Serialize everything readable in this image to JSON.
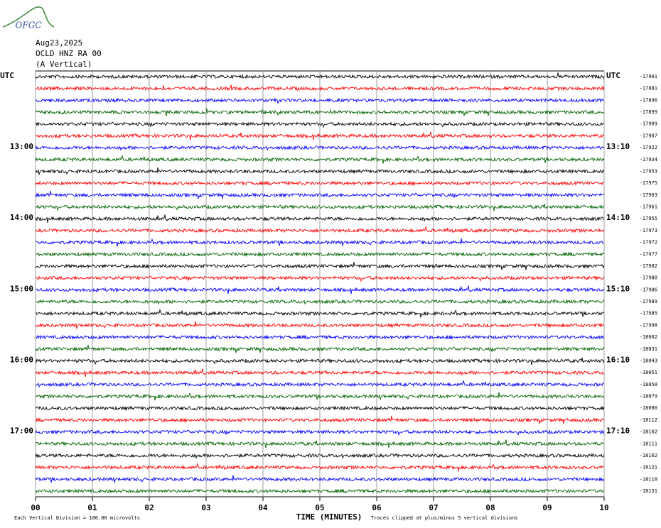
{
  "chart_data": {
    "type": "helicorder",
    "logo": "OFGC",
    "date": "Aug23,2025",
    "station": "OCLD HNZ RA 00",
    "component": "(A Vertical)",
    "xlabel": "TIME (MINUTES)",
    "xlim": [
      0,
      10
    ],
    "xticks": [
      {
        "value": 0,
        "label": "00"
      },
      {
        "value": 1,
        "label": "01"
      },
      {
        "value": 2,
        "label": "02"
      },
      {
        "value": 3,
        "label": "03"
      },
      {
        "value": 4,
        "label": "04"
      },
      {
        "value": 5,
        "label": "05"
      },
      {
        "value": 6,
        "label": "06"
      },
      {
        "value": 7,
        "label": "07"
      },
      {
        "value": 8,
        "label": "08"
      },
      {
        "value": 9,
        "label": "09"
      },
      {
        "value": 10,
        "label": "10"
      }
    ],
    "grid": true,
    "trace_colors": [
      "#000000",
      "#ff0000",
      "#0000ff",
      "#006400"
    ],
    "note_scale": "Each Vertical Division =  100.00 microvolts",
    "note_clip": "Traces clipped at plus/minus 5 vertical divisions",
    "rows": [
      {
        "left": "UTC",
        "right": "UTC",
        "offset": "-17901"
      },
      {
        "offset": "-17881"
      },
      {
        "offset": "-17896"
      },
      {
        "offset": "-17899"
      },
      {
        "offset": "-17909"
      },
      {
        "offset": "-17907"
      },
      {
        "left": "13:00",
        "right": "13:10",
        "offset": "-17922"
      },
      {
        "offset": "-17934"
      },
      {
        "offset": "-17953"
      },
      {
        "offset": "-17975"
      },
      {
        "offset": "-17963"
      },
      {
        "offset": "-17961"
      },
      {
        "left": "14:00",
        "right": "14:10",
        "offset": "-17955"
      },
      {
        "offset": "-17973"
      },
      {
        "offset": "-17972"
      },
      {
        "offset": "-17977"
      },
      {
        "offset": "-17982"
      },
      {
        "offset": "-17980"
      },
      {
        "left": "15:00",
        "right": "15:10",
        "offset": "-17986"
      },
      {
        "offset": "-17989"
      },
      {
        "offset": "-17985"
      },
      {
        "offset": "-17998"
      },
      {
        "offset": "-18002"
      },
      {
        "offset": "-18031"
      },
      {
        "left": "16:00",
        "right": "16:10",
        "offset": "-18043"
      },
      {
        "offset": "-18051"
      },
      {
        "offset": "-18058"
      },
      {
        "offset": "-18079"
      },
      {
        "offset": "-18080"
      },
      {
        "offset": "-18112"
      },
      {
        "left": "17:00",
        "right": "17:10",
        "offset": "-18102"
      },
      {
        "offset": "-18111"
      },
      {
        "offset": "-18102"
      },
      {
        "offset": "-18121"
      },
      {
        "offset": "-18118"
      },
      {
        "offset": "-18131"
      }
    ]
  }
}
